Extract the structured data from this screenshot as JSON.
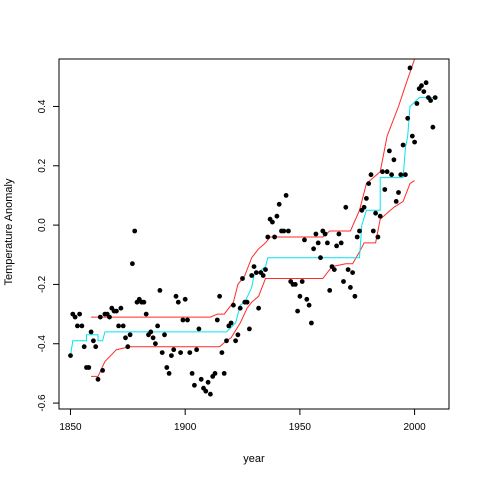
{
  "chart_data": {
    "type": "scatter",
    "xlabel": "year",
    "ylabel": "Temperature Anomaly",
    "xlim": [
      1845,
      2015
    ],
    "ylim": [
      -0.62,
      0.56
    ],
    "x_ticks": [
      1850,
      1900,
      1950,
      2000
    ],
    "x_tick_labels": [
      "1850",
      "1900",
      "1950",
      "2000"
    ],
    "y_ticks": [
      -0.6,
      -0.4,
      -0.2,
      0.0,
      0.2,
      0.4
    ],
    "y_tick_labels": [
      "-0.6",
      "-0.4",
      "-0.2",
      "0.0",
      "0.2",
      "0.4"
    ],
    "grid": false,
    "colors": {
      "points": "#000000",
      "fit_line": "#00e5ee",
      "bounds": "#ff2a2a"
    },
    "points": [
      {
        "x": 1850,
        "y": -0.44
      },
      {
        "x": 1851,
        "y": -0.3
      },
      {
        "x": 1852,
        "y": -0.31
      },
      {
        "x": 1853,
        "y": -0.34
      },
      {
        "x": 1854,
        "y": -0.3
      },
      {
        "x": 1855,
        "y": -0.34
      },
      {
        "x": 1856,
        "y": -0.41
      },
      {
        "x": 1857,
        "y": -0.48
      },
      {
        "x": 1858,
        "y": -0.48
      },
      {
        "x": 1859,
        "y": -0.36
      },
      {
        "x": 1860,
        "y": -0.39
      },
      {
        "x": 1861,
        "y": -0.41
      },
      {
        "x": 1862,
        "y": -0.52
      },
      {
        "x": 1863,
        "y": -0.31
      },
      {
        "x": 1864,
        "y": -0.49
      },
      {
        "x": 1865,
        "y": -0.3
      },
      {
        "x": 1866,
        "y": -0.3
      },
      {
        "x": 1867,
        "y": -0.31
      },
      {
        "x": 1868,
        "y": -0.28
      },
      {
        "x": 1869,
        "y": -0.29
      },
      {
        "x": 1870,
        "y": -0.29
      },
      {
        "x": 1871,
        "y": -0.34
      },
      {
        "x": 1872,
        "y": -0.28
      },
      {
        "x": 1873,
        "y": -0.34
      },
      {
        "x": 1874,
        "y": -0.38
      },
      {
        "x": 1875,
        "y": -0.41
      },
      {
        "x": 1876,
        "y": -0.37
      },
      {
        "x": 1877,
        "y": -0.13
      },
      {
        "x": 1878,
        "y": -0.02
      },
      {
        "x": 1879,
        "y": -0.26
      },
      {
        "x": 1880,
        "y": -0.25
      },
      {
        "x": 1881,
        "y": -0.26
      },
      {
        "x": 1882,
        "y": -0.26
      },
      {
        "x": 1883,
        "y": -0.3
      },
      {
        "x": 1884,
        "y": -0.37
      },
      {
        "x": 1885,
        "y": -0.36
      },
      {
        "x": 1886,
        "y": -0.38
      },
      {
        "x": 1887,
        "y": -0.4
      },
      {
        "x": 1888,
        "y": -0.34
      },
      {
        "x": 1889,
        "y": -0.22
      },
      {
        "x": 1890,
        "y": -0.43
      },
      {
        "x": 1891,
        "y": -0.37
      },
      {
        "x": 1892,
        "y": -0.48
      },
      {
        "x": 1893,
        "y": -0.5
      },
      {
        "x": 1894,
        "y": -0.44
      },
      {
        "x": 1895,
        "y": -0.42
      },
      {
        "x": 1896,
        "y": -0.24
      },
      {
        "x": 1897,
        "y": -0.26
      },
      {
        "x": 1898,
        "y": -0.43
      },
      {
        "x": 1899,
        "y": -0.32
      },
      {
        "x": 1900,
        "y": -0.25
      },
      {
        "x": 1901,
        "y": -0.32
      },
      {
        "x": 1902,
        "y": -0.43
      },
      {
        "x": 1903,
        "y": -0.5
      },
      {
        "x": 1904,
        "y": -0.54
      },
      {
        "x": 1905,
        "y": -0.42
      },
      {
        "x": 1906,
        "y": -0.35
      },
      {
        "x": 1907,
        "y": -0.52
      },
      {
        "x": 1908,
        "y": -0.55
      },
      {
        "x": 1909,
        "y": -0.56
      },
      {
        "x": 1910,
        "y": -0.53
      },
      {
        "x": 1911,
        "y": -0.57
      },
      {
        "x": 1912,
        "y": -0.51
      },
      {
        "x": 1913,
        "y": -0.5
      },
      {
        "x": 1914,
        "y": -0.32
      },
      {
        "x": 1915,
        "y": -0.24
      },
      {
        "x": 1916,
        "y": -0.43
      },
      {
        "x": 1917,
        "y": -0.5
      },
      {
        "x": 1918,
        "y": -0.39
      },
      {
        "x": 1919,
        "y": -0.34
      },
      {
        "x": 1920,
        "y": -0.33
      },
      {
        "x": 1921,
        "y": -0.27
      },
      {
        "x": 1922,
        "y": -0.39
      },
      {
        "x": 1923,
        "y": -0.37
      },
      {
        "x": 1924,
        "y": -0.28
      },
      {
        "x": 1925,
        "y": -0.18
      },
      {
        "x": 1926,
        "y": -0.26
      },
      {
        "x": 1927,
        "y": -0.26
      },
      {
        "x": 1928,
        "y": -0.35
      },
      {
        "x": 1929,
        "y": -0.17
      },
      {
        "x": 1930,
        "y": -0.14
      },
      {
        "x": 1931,
        "y": -0.16
      },
      {
        "x": 1932,
        "y": -0.28
      },
      {
        "x": 1933,
        "y": -0.16
      },
      {
        "x": 1934,
        "y": -0.17
      },
      {
        "x": 1935,
        "y": -0.15
      },
      {
        "x": 1936,
        "y": -0.04
      },
      {
        "x": 1937,
        "y": 0.02
      },
      {
        "x": 1938,
        "y": 0.01
      },
      {
        "x": 1939,
        "y": -0.04
      },
      {
        "x": 1940,
        "y": 0.03
      },
      {
        "x": 1941,
        "y": 0.07
      },
      {
        "x": 1942,
        "y": -0.02
      },
      {
        "x": 1943,
        "y": -0.02
      },
      {
        "x": 1944,
        "y": 0.1
      },
      {
        "x": 1945,
        "y": -0.02
      },
      {
        "x": 1946,
        "y": -0.19
      },
      {
        "x": 1947,
        "y": -0.2
      },
      {
        "x": 1948,
        "y": -0.2
      },
      {
        "x": 1949,
        "y": -0.29
      },
      {
        "x": 1950,
        "y": -0.24
      },
      {
        "x": 1951,
        "y": -0.19
      },
      {
        "x": 1952,
        "y": -0.05
      },
      {
        "x": 1953,
        "y": -0.25
      },
      {
        "x": 1954,
        "y": -0.27
      },
      {
        "x": 1955,
        "y": -0.33
      },
      {
        "x": 1956,
        "y": -0.08
      },
      {
        "x": 1957,
        "y": -0.03
      },
      {
        "x": 1958,
        "y": -0.06
      },
      {
        "x": 1959,
        "y": -0.11
      },
      {
        "x": 1960,
        "y": -0.02
      },
      {
        "x": 1961,
        "y": -0.03
      },
      {
        "x": 1962,
        "y": -0.06
      },
      {
        "x": 1963,
        "y": -0.22
      },
      {
        "x": 1964,
        "y": -0.14
      },
      {
        "x": 1965,
        "y": -0.15
      },
      {
        "x": 1966,
        "y": -0.07
      },
      {
        "x": 1967,
        "y": -0.03
      },
      {
        "x": 1968,
        "y": -0.06
      },
      {
        "x": 1969,
        "y": -0.19
      },
      {
        "x": 1970,
        "y": 0.06
      },
      {
        "x": 1971,
        "y": -0.15
      },
      {
        "x": 1972,
        "y": -0.21
      },
      {
        "x": 1973,
        "y": -0.16
      },
      {
        "x": 1974,
        "y": -0.24
      },
      {
        "x": 1975,
        "y": -0.04
      },
      {
        "x": 1976,
        "y": -0.02
      },
      {
        "x": 1977,
        "y": 0.05
      },
      {
        "x": 1978,
        "y": 0.06
      },
      {
        "x": 1979,
        "y": 0.09
      },
      {
        "x": 1980,
        "y": 0.14
      },
      {
        "x": 1981,
        "y": 0.17
      },
      {
        "x": 1982,
        "y": -0.02
      },
      {
        "x": 1983,
        "y": 0.04
      },
      {
        "x": 1984,
        "y": -0.04
      },
      {
        "x": 1985,
        "y": 0.03
      },
      {
        "x": 1986,
        "y": 0.18
      },
      {
        "x": 1987,
        "y": 0.12
      },
      {
        "x": 1988,
        "y": 0.18
      },
      {
        "x": 1989,
        "y": 0.25
      },
      {
        "x": 1990,
        "y": 0.17
      },
      {
        "x": 1991,
        "y": 0.22
      },
      {
        "x": 1992,
        "y": 0.08
      },
      {
        "x": 1993,
        "y": 0.11
      },
      {
        "x": 1994,
        "y": 0.17
      },
      {
        "x": 1995,
        "y": 0.27
      },
      {
        "x": 1996,
        "y": 0.17
      },
      {
        "x": 1997,
        "y": 0.36
      },
      {
        "x": 1998,
        "y": 0.53
      },
      {
        "x": 1999,
        "y": 0.3
      },
      {
        "x": 2000,
        "y": 0.28
      },
      {
        "x": 2001,
        "y": 0.41
      },
      {
        "x": 2002,
        "y": 0.46
      },
      {
        "x": 2003,
        "y": 0.47
      },
      {
        "x": 2004,
        "y": 0.45
      },
      {
        "x": 2005,
        "y": 0.48
      },
      {
        "x": 2006,
        "y": 0.43
      },
      {
        "x": 2007,
        "y": 0.42
      },
      {
        "x": 2008,
        "y": 0.33
      },
      {
        "x": 2009,
        "y": 0.43
      }
    ],
    "fit_line": [
      [
        1850,
        -0.44
      ],
      [
        1851,
        -0.39
      ],
      [
        1857,
        -0.39
      ],
      [
        1857,
        -0.37
      ],
      [
        1862,
        -0.37
      ],
      [
        1862,
        -0.39
      ],
      [
        1864,
        -0.39
      ],
      [
        1865,
        -0.36
      ],
      [
        1918,
        -0.36
      ],
      [
        1922,
        -0.33
      ],
      [
        1923,
        -0.3
      ],
      [
        1924,
        -0.27
      ],
      [
        1926,
        -0.26
      ],
      [
        1929,
        -0.21
      ],
      [
        1930,
        -0.17
      ],
      [
        1935,
        -0.14
      ],
      [
        1936,
        -0.11
      ],
      [
        1976,
        -0.11
      ],
      [
        1977,
        0.0
      ],
      [
        1979,
        0.05
      ],
      [
        1985,
        0.05
      ],
      [
        1985,
        0.16
      ],
      [
        1995,
        0.16
      ],
      [
        1996,
        0.26
      ],
      [
        1997,
        0.3
      ],
      [
        1998,
        0.4
      ],
      [
        2002,
        0.43
      ],
      [
        2009,
        0.43
      ]
    ],
    "upper_bound": [
      [
        1859,
        -0.31
      ],
      [
        1911,
        -0.31
      ],
      [
        1914,
        -0.3
      ],
      [
        1917,
        -0.3
      ],
      [
        1921,
        -0.26
      ],
      [
        1923,
        -0.2
      ],
      [
        1926,
        -0.17
      ],
      [
        1929,
        -0.11
      ],
      [
        1932,
        -0.08
      ],
      [
        1935,
        -0.06
      ],
      [
        1937,
        -0.04
      ],
      [
        1960,
        -0.04
      ],
      [
        1963,
        -0.02
      ],
      [
        1972,
        -0.02
      ],
      [
        1976,
        0.05
      ],
      [
        1979,
        0.14
      ],
      [
        1985,
        0.18
      ],
      [
        1988,
        0.3
      ],
      [
        1993,
        0.4
      ],
      [
        1996,
        0.47
      ],
      [
        2000,
        0.56
      ]
    ],
    "lower_bound": [
      [
        1859,
        -0.51
      ],
      [
        1862,
        -0.51
      ],
      [
        1865,
        -0.46
      ],
      [
        1870,
        -0.42
      ],
      [
        1876,
        -0.41
      ],
      [
        1915,
        -0.41
      ],
      [
        1918,
        -0.39
      ],
      [
        1920,
        -0.38
      ],
      [
        1924,
        -0.33
      ],
      [
        1927,
        -0.28
      ],
      [
        1929,
        -0.26
      ],
      [
        1932,
        -0.24
      ],
      [
        1935,
        -0.18
      ],
      [
        1937,
        -0.18
      ],
      [
        1944,
        -0.18
      ],
      [
        1950,
        -0.18
      ],
      [
        1955,
        -0.18
      ],
      [
        1960,
        -0.18
      ],
      [
        1964,
        -0.14
      ],
      [
        1970,
        -0.13
      ],
      [
        1973,
        -0.13
      ],
      [
        1976,
        -0.09
      ],
      [
        1978,
        -0.06
      ],
      [
        1983,
        -0.06
      ],
      [
        1985,
        0.02
      ],
      [
        1991,
        0.06
      ],
      [
        1995,
        0.08
      ],
      [
        1998,
        0.14
      ],
      [
        2000,
        0.15
      ]
    ]
  }
}
